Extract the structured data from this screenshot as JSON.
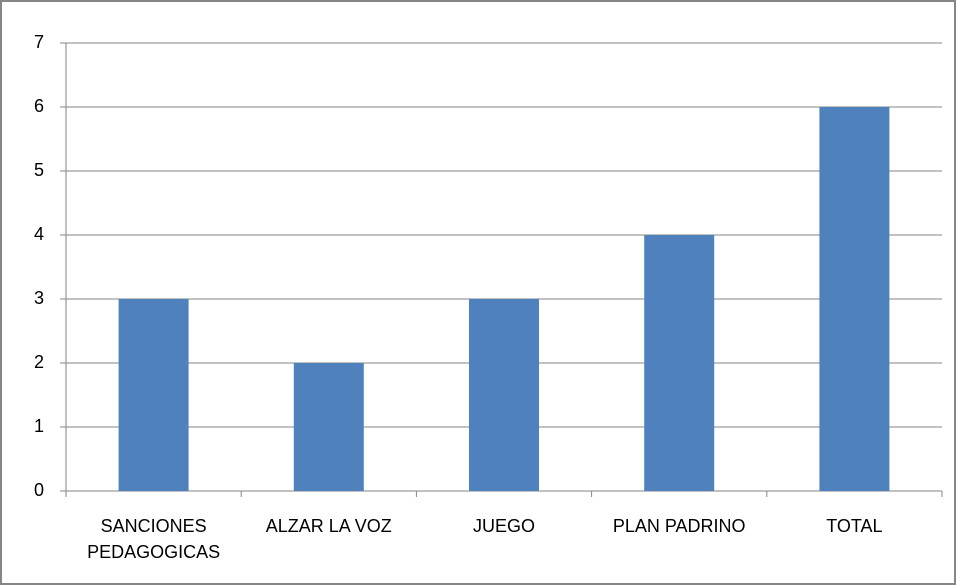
{
  "chart_data": {
    "type": "bar",
    "categories": [
      "SANCIONES PEDAGOGICAS",
      "ALZAR LA VOZ",
      "JUEGO",
      "PLAN PADRINO",
      "TOTAL"
    ],
    "values": [
      3,
      2,
      3,
      4,
      6
    ],
    "color": "#4f81bd",
    "ylim": [
      0,
      7
    ],
    "yticks": [
      0,
      1,
      2,
      3,
      4,
      5,
      6,
      7
    ],
    "grid": true
  }
}
